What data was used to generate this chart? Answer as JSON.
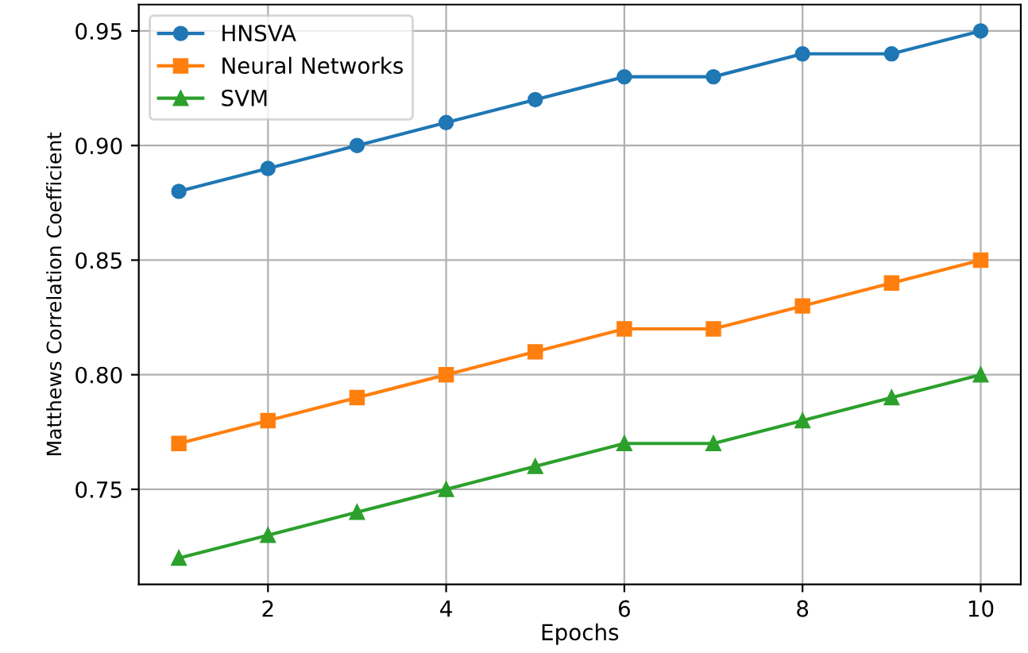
{
  "chart_data": {
    "type": "line",
    "xlabel": "Epochs",
    "ylabel": "Matthews Correlation Coefficient",
    "x": [
      1,
      2,
      3,
      4,
      5,
      6,
      7,
      8,
      9,
      10
    ],
    "series": [
      {
        "name": "HNSVA",
        "color": "#1f77b4",
        "marker": "circle",
        "values": [
          0.88,
          0.89,
          0.9,
          0.91,
          0.92,
          0.93,
          0.93,
          0.94,
          0.94,
          0.95
        ]
      },
      {
        "name": "Neural Networks",
        "color": "#ff7f0e",
        "marker": "square",
        "values": [
          0.77,
          0.78,
          0.79,
          0.8,
          0.81,
          0.82,
          0.82,
          0.83,
          0.84,
          0.85
        ]
      },
      {
        "name": "SVM",
        "color": "#2ca02c",
        "marker": "triangle",
        "values": [
          0.72,
          0.73,
          0.74,
          0.75,
          0.76,
          0.77,
          0.77,
          0.78,
          0.79,
          0.8
        ]
      }
    ],
    "xlim": [
      0.55,
      10.45
    ],
    "xticks": [
      2,
      4,
      6,
      8,
      10
    ],
    "ylim": [
      0.7085,
      0.9615
    ],
    "yticks": [
      0.75,
      {
        "value": 0.8,
        "label": "0.80"
      },
      0.85,
      {
        "value": 0.9,
        "label": "0.90"
      },
      0.95
    ],
    "grid": true,
    "legend": "top left",
    "line_style": "solid"
  }
}
